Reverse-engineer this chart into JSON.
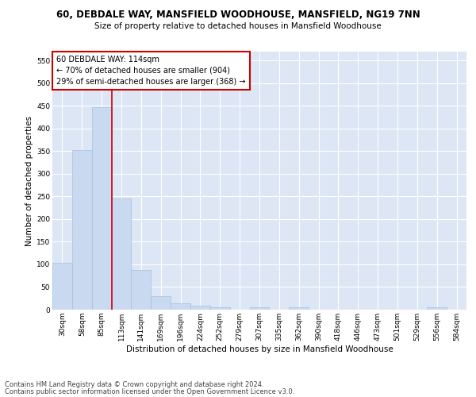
{
  "title": "60, DEBDALE WAY, MANSFIELD WOODHOUSE, MANSFIELD, NG19 7NN",
  "subtitle": "Size of property relative to detached houses in Mansfield Woodhouse",
  "xlabel": "Distribution of detached houses by size in Mansfield Woodhouse",
  "ylabel": "Number of detached properties",
  "categories": [
    "30sqm",
    "58sqm",
    "85sqm",
    "113sqm",
    "141sqm",
    "169sqm",
    "196sqm",
    "224sqm",
    "252sqm",
    "279sqm",
    "307sqm",
    "335sqm",
    "362sqm",
    "390sqm",
    "418sqm",
    "446sqm",
    "473sqm",
    "501sqm",
    "529sqm",
    "556sqm",
    "584sqm"
  ],
  "values": [
    103,
    353,
    448,
    246,
    88,
    30,
    14,
    9,
    5,
    0,
    5,
    0,
    5,
    0,
    0,
    0,
    0,
    0,
    0,
    5,
    0
  ],
  "bar_color": "#c9daf0",
  "bar_edgecolor": "#a4c2e0",
  "annotation_title": "60 DEBDALE WAY: 114sqm",
  "annotation_line1": "← 70% of detached houses are smaller (904)",
  "annotation_line2": "29% of semi-detached houses are larger (368) →",
  "annotation_box_facecolor": "#ffffff",
  "annotation_box_edgecolor": "#cc0000",
  "vline_color": "#cc0000",
  "ylim": [
    0,
    570
  ],
  "yticks": [
    0,
    50,
    100,
    150,
    200,
    250,
    300,
    350,
    400,
    450,
    500,
    550
  ],
  "background_color": "#dce6f5",
  "grid_color": "#ffffff",
  "footer1": "Contains HM Land Registry data © Crown copyright and database right 2024.",
  "footer2": "Contains public sector information licensed under the Open Government Licence v3.0.",
  "title_fontsize": 8.5,
  "subtitle_fontsize": 7.5,
  "xlabel_fontsize": 7.5,
  "ylabel_fontsize": 7.5,
  "tick_fontsize": 6.5,
  "annotation_fontsize": 7.0,
  "footer_fontsize": 6.0
}
